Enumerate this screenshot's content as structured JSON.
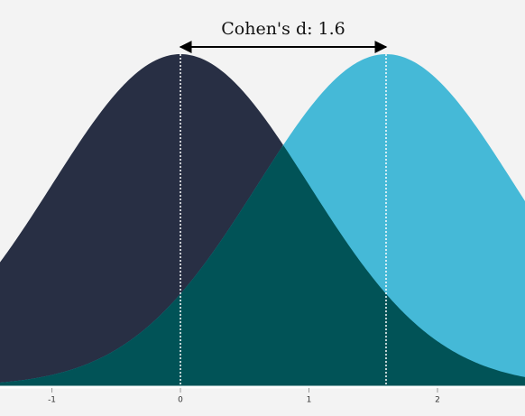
{
  "chart_data": {
    "type": "density",
    "annotation": "Cohen's d: 1.6",
    "series": [
      {
        "mean": 0,
        "sd": 1,
        "color": "#282f44"
      },
      {
        "mean": 1.6,
        "sd": 1,
        "color": "#45b9d7"
      }
    ],
    "overlap_color": "#015357",
    "xlim": [
      -1.404,
      2.681
    ],
    "xticks": [
      -1,
      0,
      1,
      2
    ],
    "ylim": [
      0,
      0.464
    ]
  }
}
